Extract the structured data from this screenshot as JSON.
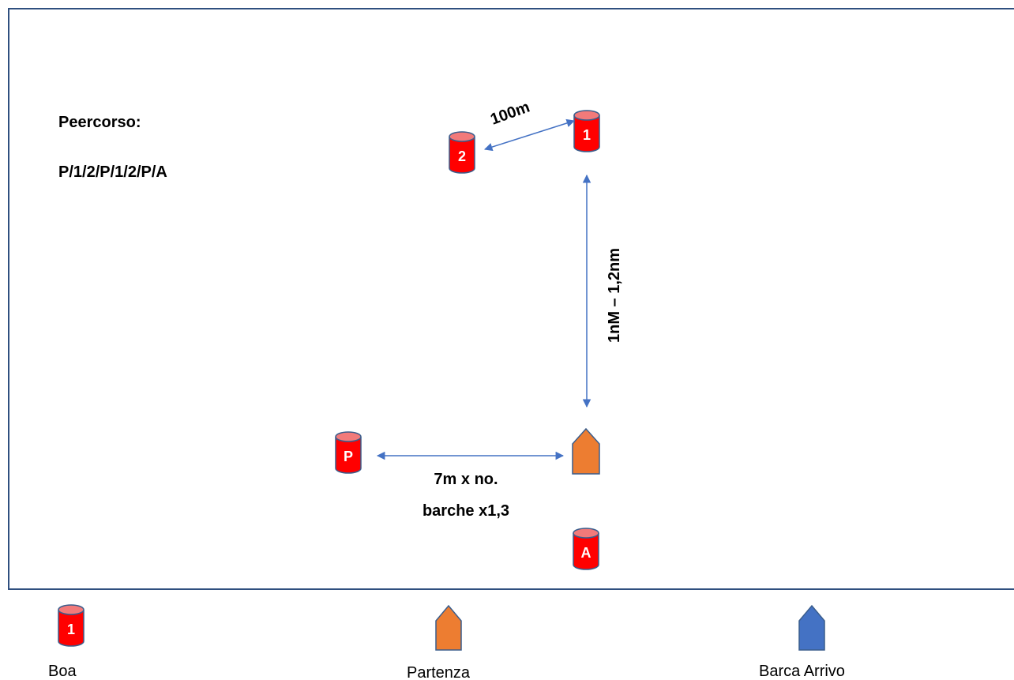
{
  "course": {
    "title": "Peercorso:",
    "sequence": "P/1/2/P/1/2/P/A"
  },
  "marks": {
    "mark1": "1",
    "mark2": "2",
    "pin": "P",
    "arrival": "A"
  },
  "distances": {
    "offset": "100m",
    "beat": "1nM – 1,2nm",
    "start_line_1": "7m x no.",
    "start_line_2": "barche x1,3"
  },
  "legend": {
    "buoy_sample": "1",
    "buoy": "Boa",
    "start_boat": "Partenza",
    "finish_boat": "Barca Arrivo"
  },
  "colors": {
    "buoy": "#ff0000",
    "buoy_top": "#f27a7a",
    "buoy_outline": "#3a5d8c",
    "start_boat": "#ed7d31",
    "finish_boat": "#4472c4",
    "arrow": "#4472c4",
    "frame": "#2f4f7f"
  }
}
